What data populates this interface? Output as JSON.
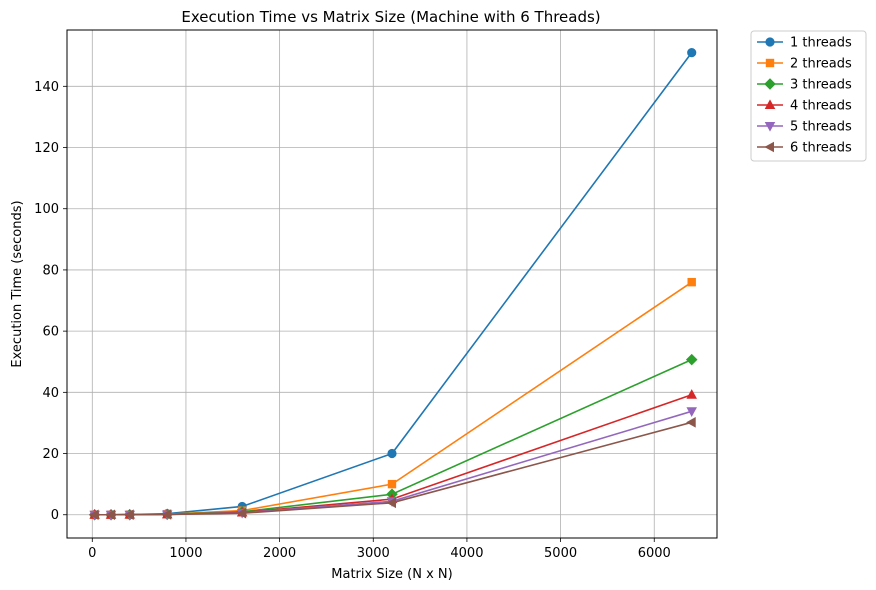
{
  "chart_data": {
    "type": "line",
    "title": "Execution Time vs Matrix Size (Machine with 6 Threads)",
    "xlabel": "Matrix Size (N x N)",
    "ylabel": "Execution Time (seconds)",
    "xlim": [
      -270,
      6670
    ],
    "ylim": [
      -7.6,
      158.4
    ],
    "xticks": [
      0,
      1000,
      2000,
      3000,
      4000,
      5000,
      6000
    ],
    "yticks": [
      0,
      20,
      40,
      60,
      80,
      100,
      120,
      140
    ],
    "grid": true,
    "legend_position": "outside-top-right",
    "x": [
      25,
      200,
      400,
      800,
      1600,
      3200,
      6400
    ],
    "series": [
      {
        "name": "1 threads",
        "color": "#1f77b4",
        "marker": "circle",
        "values": [
          0.0,
          0.0,
          0.05,
          0.35,
          2.7,
          20.0,
          151.0
        ]
      },
      {
        "name": "2 threads",
        "color": "#ff7f0e",
        "marker": "square",
        "values": [
          0.0,
          0.0,
          0.03,
          0.2,
          1.35,
          10.0,
          76.0
        ]
      },
      {
        "name": "3 threads",
        "color": "#2ca02c",
        "marker": "diamond",
        "values": [
          0.0,
          0.0,
          0.02,
          0.14,
          0.95,
          6.7,
          50.7
        ]
      },
      {
        "name": "4 threads",
        "color": "#d62728",
        "marker": "triangle-up",
        "values": [
          0.0,
          0.0,
          0.02,
          0.11,
          0.75,
          5.1,
          39.2
        ]
      },
      {
        "name": "5 threads",
        "color": "#9467bd",
        "marker": "triangle-down",
        "values": [
          0.0,
          0.0,
          0.01,
          0.09,
          0.6,
          4.4,
          33.8
        ]
      },
      {
        "name": "6 threads",
        "color": "#8c564b",
        "marker": "triangle-left",
        "values": [
          0.0,
          0.0,
          0.01,
          0.08,
          0.5,
          3.9,
          30.2
        ]
      }
    ]
  }
}
